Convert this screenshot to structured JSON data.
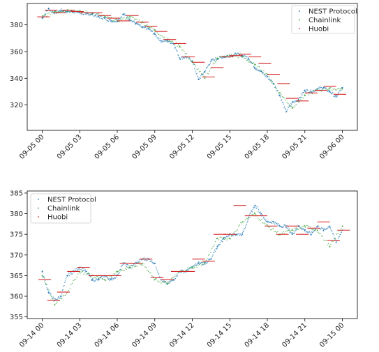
{
  "chart_data": [
    {
      "type": "scatter",
      "x_ticks": [
        "09-05 00",
        "09-05 03",
        "09-05 06",
        "09-05 09",
        "09-05 12",
        "09-05 15",
        "09-05 18",
        "09-05 21",
        "09-06 00"
      ],
      "x_range_hours": [
        -1.2,
        25.2
      ],
      "y_ticks": [
        "320",
        "340",
        "360",
        "380"
      ],
      "ylim": [
        301,
        396
      ],
      "legend": {
        "placement": "top-right",
        "entries": [
          "NEST Protocol",
          "Chainlink",
          "Huobi"
        ]
      },
      "series": [
        {
          "name": "NEST Protocol",
          "color": "#1f77b4",
          "marker": "dot",
          "x": [
            0.0,
            0.5,
            1.0,
            1.5,
            2.0,
            2.5,
            3.0,
            3.5,
            4.0,
            4.5,
            5.0,
            5.5,
            6.0,
            6.5,
            7.0,
            7.5,
            8.0,
            8.5,
            9.0,
            9.5,
            10.0,
            10.5,
            11.0,
            11.5,
            12.0,
            12.5,
            13.0,
            13.5,
            14.0,
            14.5,
            15.0,
            15.5,
            16.0,
            16.5,
            17.0,
            17.5,
            18.0,
            18.5,
            19.0,
            19.5,
            20.0,
            20.5,
            21.0,
            21.5,
            22.0,
            22.5,
            23.0,
            23.5,
            24.0
          ],
          "y": [
            385,
            392,
            389,
            391,
            390,
            390,
            389,
            388,
            388,
            386,
            385,
            383,
            383,
            388,
            384,
            381,
            378,
            377,
            373,
            368,
            368,
            366,
            355,
            356,
            353,
            339,
            345,
            353,
            355,
            356,
            357,
            358,
            357,
            355,
            348,
            345,
            341,
            336,
            327,
            315,
            322,
            324,
            331,
            330,
            332,
            333,
            330,
            326,
            333
          ]
        },
        {
          "name": "Chainlink",
          "color": "#2ca02c",
          "marker": "dot",
          "x": [
            0.0,
            1.0,
            2.0,
            3.0,
            4.0,
            5.0,
            6.0,
            7.0,
            8.0,
            9.0,
            10.0,
            11.0,
            12.0,
            13.0,
            14.0,
            15.0,
            16.0,
            17.0,
            18.0,
            19.0,
            20.0,
            21.0,
            22.0,
            23.0,
            24.0
          ],
          "y": [
            386,
            390,
            391,
            390,
            389,
            386,
            383,
            386,
            382,
            376,
            369,
            364,
            352,
            340,
            355,
            357,
            356,
            350,
            343,
            329,
            318,
            327,
            331,
            332,
            332
          ]
        },
        {
          "name": "Huobi",
          "color": "#d62728",
          "marker": "dash",
          "x": [
            0.1,
            0.7,
            1.4,
            2.1,
            2.8,
            3.5,
            4.3,
            5.0,
            5.7,
            6.5,
            7.2,
            8.0,
            8.7,
            9.5,
            10.2,
            11.0,
            11.7,
            12.5,
            13.3,
            14.0,
            14.8,
            15.5,
            16.2,
            17.0,
            17.8,
            18.5,
            19.3,
            20.0,
            20.8,
            21.5,
            22.3,
            23.0,
            23.8
          ],
          "y": [
            386,
            391,
            389,
            391,
            390,
            389,
            389,
            387,
            385,
            383,
            387,
            382,
            379,
            375,
            369,
            366,
            356,
            352,
            341,
            348,
            356,
            357,
            358,
            356,
            351,
            343,
            336,
            325,
            323,
            329,
            331,
            334,
            328
          ]
        }
      ]
    },
    {
      "type": "scatter",
      "x_ticks": [
        "09-14 00",
        "09-14 03",
        "09-14 06",
        "09-14 09",
        "09-14 12",
        "09-14 15",
        "09-14 18",
        "09-14 21",
        "09-15 00"
      ],
      "x_range_hours": [
        -1.2,
        25.2
      ],
      "y_ticks": [
        "355",
        "360",
        "365",
        "370",
        "375",
        "380",
        "385"
      ],
      "ylim": [
        354.6,
        385.5
      ],
      "legend": {
        "placement": "top-left",
        "entries": [
          "NEST Protocol",
          "Chainlink",
          "Huobi"
        ]
      },
      "series": [
        {
          "name": "NEST Protocol",
          "color": "#1f77b4",
          "marker": "dot",
          "x": [
            0.0,
            0.5,
            1.0,
            1.5,
            2.0,
            2.5,
            3.0,
            3.5,
            4.0,
            4.5,
            5.0,
            5.5,
            6.0,
            6.5,
            7.0,
            7.5,
            8.0,
            8.5,
            9.0,
            9.5,
            10.0,
            10.5,
            11.0,
            11.5,
            12.0,
            12.5,
            13.0,
            13.5,
            14.0,
            14.5,
            15.0,
            15.5,
            16.0,
            16.5,
            17.0,
            17.5,
            18.0,
            18.5,
            19.0,
            19.5,
            20.0,
            20.5,
            21.0,
            21.5,
            22.0,
            22.5,
            23.0,
            23.5,
            24.0
          ],
          "y": [
            366,
            361,
            359,
            360,
            365,
            366,
            367,
            366,
            364,
            364,
            365,
            364,
            365,
            368,
            367,
            368,
            369,
            369,
            368,
            364,
            363,
            364,
            366,
            366,
            367,
            368,
            368,
            369,
            372,
            374,
            375,
            375,
            375,
            379,
            382,
            380,
            378,
            378,
            377,
            377,
            375,
            377,
            376,
            375,
            377,
            376,
            377,
            373,
            376
          ]
        },
        {
          "name": "Chainlink",
          "color": "#2ca02c",
          "marker": "dot",
          "x": [
            0.0,
            1.0,
            2.0,
            3.0,
            4.0,
            5.0,
            6.0,
            7.0,
            8.0,
            9.0,
            10.0,
            11.0,
            12.0,
            13.0,
            14.0,
            15.0,
            16.0,
            17.0,
            18.0,
            19.0,
            20.0,
            21.0,
            22.0,
            23.0,
            24.0
          ],
          "y": [
            365,
            358,
            361,
            366,
            365,
            364,
            366,
            367,
            368,
            364,
            363,
            366,
            367,
            368,
            374,
            374,
            378,
            380,
            377,
            375,
            376,
            377,
            376,
            372,
            377
          ]
        },
        {
          "name": "Huobi",
          "color": "#d62728",
          "marker": "dash",
          "x": [
            0.2,
            0.9,
            1.7,
            2.5,
            3.3,
            4.2,
            5.0,
            5.8,
            6.7,
            7.5,
            8.3,
            9.2,
            10.0,
            10.8,
            11.7,
            12.5,
            13.3,
            14.2,
            15.0,
            15.8,
            16.7,
            17.5,
            18.3,
            19.2,
            20.0,
            20.8,
            21.7,
            22.5,
            23.3,
            24.1
          ],
          "y": [
            364,
            359,
            361,
            366,
            367,
            365,
            365,
            365,
            368,
            368,
            369,
            364.5,
            364,
            366,
            366,
            369,
            368.5,
            375,
            375,
            382,
            379.5,
            379.5,
            377,
            375,
            377,
            375,
            376.5,
            378,
            373.5,
            376
          ]
        }
      ]
    }
  ]
}
